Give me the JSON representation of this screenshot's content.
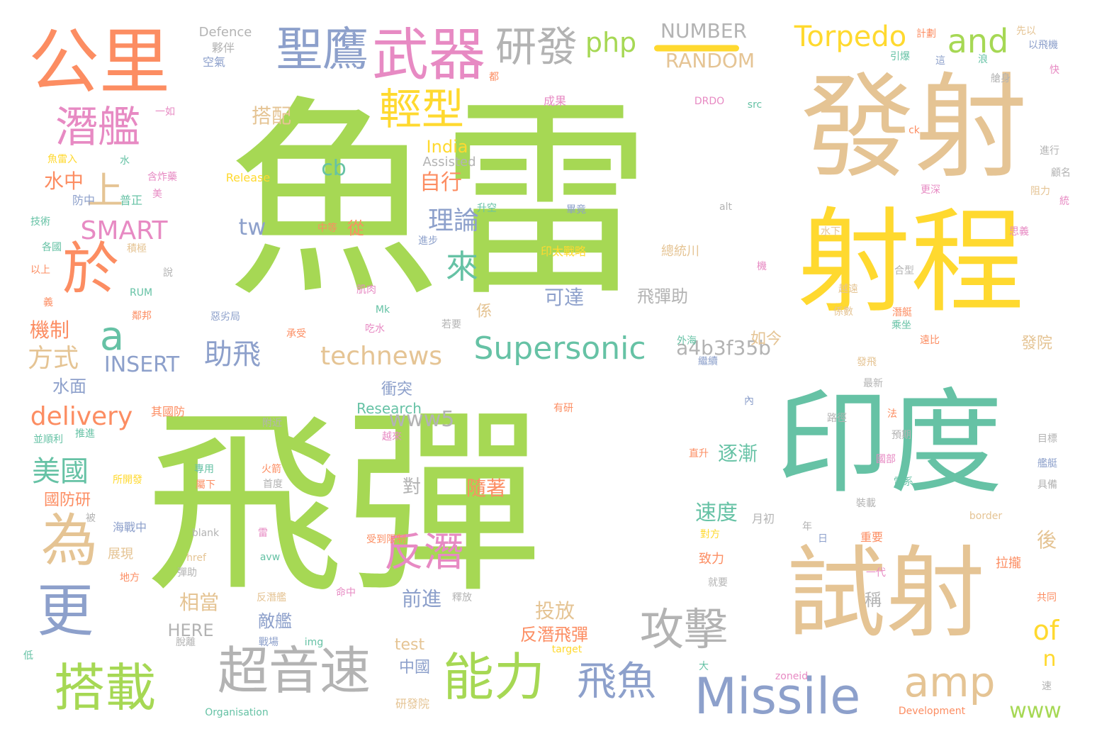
{
  "palette": {
    "green": "#a6d854",
    "teal": "#66c2a5",
    "orange": "#fc8d62",
    "blue": "#8da0cb",
    "pink": "#e78ac3",
    "yellow": "#ffd92f",
    "tan": "#e5c494",
    "gray": "#b3b3b3"
  },
  "words": [
    {
      "text": "魚雷",
      "color": "green",
      "size": 300
    },
    {
      "text": "飛彈",
      "color": "green",
      "size": 280
    },
    {
      "text": "發射",
      "color": "tan",
      "size": 160
    },
    {
      "text": "射程",
      "color": "yellow",
      "size": 160
    },
    {
      "text": "印度",
      "color": "teal",
      "size": 160
    },
    {
      "text": "試射",
      "color": "tan",
      "size": 140
    },
    {
      "text": "公里",
      "color": "orange",
      "size": 100
    },
    {
      "text": "武器",
      "color": "pink",
      "size": 80
    },
    {
      "text": "聖鷹",
      "color": "blue",
      "size": 65
    },
    {
      "text": "研發",
      "color": "gray",
      "size": 58
    },
    {
      "text": "php",
      "color": "green",
      "size": 38
    },
    {
      "text": "NUMBER",
      "color": "gray",
      "size": 28
    },
    {
      "text": "RANDOM",
      "color": "tan",
      "size": 28
    },
    {
      "text": "Torpedo",
      "color": "yellow",
      "size": 40
    },
    {
      "text": "and",
      "color": "green",
      "size": 46
    },
    {
      "text": "潛艦",
      "color": "pink",
      "size": 60
    },
    {
      "text": "輕型",
      "color": "yellow",
      "size": 60
    },
    {
      "text": "上",
      "color": "tan",
      "size": 52
    },
    {
      "text": "於",
      "color": "orange",
      "size": 80
    },
    {
      "text": "SMART",
      "color": "pink",
      "size": 36
    },
    {
      "text": "a",
      "color": "teal",
      "size": 56
    },
    {
      "text": "為",
      "color": "tan",
      "size": 80
    },
    {
      "text": "更",
      "color": "blue",
      "size": 80
    },
    {
      "text": "搭載",
      "color": "green",
      "size": 72
    },
    {
      "text": "超音速",
      "color": "gray",
      "size": 72
    },
    {
      "text": "能力",
      "color": "green",
      "size": 72
    },
    {
      "text": "飛魚",
      "color": "blue",
      "size": 56
    },
    {
      "text": "Missile",
      "color": "blue",
      "size": 70
    },
    {
      "text": "amp",
      "color": "tan",
      "size": 58
    },
    {
      "text": "攻擊",
      "color": "gray",
      "size": 62
    },
    {
      "text": "反潛",
      "color": "pink",
      "size": 56
    },
    {
      "text": "Supersonic",
      "color": "teal",
      "size": 44
    },
    {
      "text": "technews",
      "color": "tan",
      "size": 36
    },
    {
      "text": "INSERT",
      "color": "blue",
      "size": 30
    },
    {
      "text": "方式",
      "color": "tan",
      "size": 36
    },
    {
      "text": "delivery",
      "color": "orange",
      "size": 36
    },
    {
      "text": "美國",
      "color": "teal",
      "size": 40
    },
    {
      "text": "來",
      "color": "teal",
      "size": 46
    },
    {
      "text": "助飛",
      "color": "blue",
      "size": 40
    },
    {
      "text": "理論",
      "color": "blue",
      "size": 36
    },
    {
      "text": "自行",
      "color": "orange",
      "size": 30
    },
    {
      "text": "cb",
      "color": "teal",
      "size": 30
    },
    {
      "text": "tw",
      "color": "blue",
      "size": 32
    },
    {
      "text": "www5",
      "color": "gray",
      "size": 30
    },
    {
      "text": "a4b3f35b",
      "color": "gray",
      "size": 28
    },
    {
      "text": "India",
      "color": "yellow",
      "size": 24
    },
    {
      "text": "Assisted",
      "color": "gray",
      "size": 18
    },
    {
      "text": "搭配",
      "color": "tan",
      "size": 28
    },
    {
      "text": "水中",
      "color": "orange",
      "size": 28
    },
    {
      "text": "機制",
      "color": "orange",
      "size": 28
    },
    {
      "text": "水面",
      "color": "blue",
      "size": 24
    },
    {
      "text": "國防研",
      "color": "orange",
      "size": 22
    },
    {
      "text": "可達",
      "color": "blue",
      "size": 28
    },
    {
      "text": "飛彈助",
      "color": "gray",
      "size": 24
    },
    {
      "text": "如今",
      "color": "tan",
      "size": 22
    },
    {
      "text": "發院",
      "color": "tan",
      "size": 22
    },
    {
      "text": "衝突",
      "color": "blue",
      "size": 22
    },
    {
      "text": "Research",
      "color": "teal",
      "size": 20
    },
    {
      "text": "逐漸",
      "color": "teal",
      "size": 28
    },
    {
      "text": "隨著",
      "color": "orange",
      "size": 28
    },
    {
      "text": "速度",
      "color": "teal",
      "size": 30
    },
    {
      "text": "前進",
      "color": "blue",
      "size": 28
    },
    {
      "text": "相當",
      "color": "tan",
      "size": 28
    },
    {
      "text": "投放",
      "color": "tan",
      "size": 28
    },
    {
      "text": "敵艦",
      "color": "blue",
      "size": 24
    },
    {
      "text": "反潛飛彈",
      "color": "orange",
      "size": 24
    },
    {
      "text": "HERE",
      "color": "gray",
      "size": 24
    },
    {
      "text": "test",
      "color": "tan",
      "size": 22
    },
    {
      "text": "中國",
      "color": "blue",
      "size": 22
    },
    {
      "text": "研發院",
      "color": "tan",
      "size": 16
    },
    {
      "text": "of",
      "color": "yellow",
      "size": 38
    },
    {
      "text": "n",
      "color": "yellow",
      "size": 30
    },
    {
      "text": "www",
      "color": "green",
      "size": 30
    },
    {
      "text": "後",
      "color": "tan",
      "size": 28
    },
    {
      "text": "稱",
      "color": "gray",
      "size": 24
    },
    {
      "text": "Defence",
      "color": "gray",
      "size": 18
    },
    {
      "text": "夥伴",
      "color": "gray",
      "size": 16
    },
    {
      "text": "空氣",
      "color": "blue",
      "size": 16
    },
    {
      "text": "計劃",
      "color": "orange",
      "size": 14
    },
    {
      "text": "先以",
      "color": "tan",
      "size": 14
    },
    {
      "text": "以飛機",
      "color": "blue",
      "size": 14
    },
    {
      "text": "引爆",
      "color": "teal",
      "size": 14
    },
    {
      "text": "艙身",
      "color": "gray",
      "size": 14
    },
    {
      "text": "DRDO",
      "color": "pink",
      "size": 14
    },
    {
      "text": "src",
      "color": "teal",
      "size": 14
    },
    {
      "text": "ck",
      "color": "orange",
      "size": 14
    },
    {
      "text": "成果",
      "color": "pink",
      "size": 16
    },
    {
      "text": "一如",
      "color": "pink",
      "size": 14
    },
    {
      "text": "魚雷入",
      "color": "yellow",
      "size": 14
    },
    {
      "text": "Release",
      "color": "yellow",
      "size": 16
    },
    {
      "text": "含炸藥",
      "color": "pink",
      "size": 14
    },
    {
      "text": "普正",
      "color": "teal",
      "size": 16
    },
    {
      "text": "防中",
      "color": "blue",
      "size": 16
    },
    {
      "text": "技術",
      "color": "teal",
      "size": 14
    },
    {
      "text": "各國",
      "color": "teal",
      "size": 14
    },
    {
      "text": "以上",
      "color": "orange",
      "size": 14
    },
    {
      "text": "積極",
      "color": "tan",
      "size": 14
    },
    {
      "text": "RUM",
      "color": "teal",
      "size": 14
    },
    {
      "text": "中等",
      "color": "orange",
      "size": 14
    },
    {
      "text": "從",
      "color": "orange",
      "size": 24
    },
    {
      "text": "畢竟",
      "color": "blue",
      "size": 14
    },
    {
      "text": "印太戰略",
      "color": "yellow",
      "size": 16
    },
    {
      "text": "總統川",
      "color": "tan",
      "size": 18
    },
    {
      "text": "更深",
      "color": "pink",
      "size": 14
    },
    {
      "text": "阻力",
      "color": "tan",
      "size": 14
    },
    {
      "text": "思義",
      "color": "pink",
      "size": 14
    },
    {
      "text": "進行",
      "color": "gray",
      "size": 14
    },
    {
      "text": "顧名",
      "color": "gray",
      "size": 14
    },
    {
      "text": "水下",
      "color": "tan",
      "size": 14
    },
    {
      "text": "alt",
      "color": "gray",
      "size": 14
    },
    {
      "text": "肌肉",
      "color": "pink",
      "size": 14
    },
    {
      "text": "Mk",
      "color": "teal",
      "size": 14
    },
    {
      "text": "吃水",
      "color": "pink",
      "size": 14
    },
    {
      "text": "承受",
      "color": "orange",
      "size": 14
    },
    {
      "text": "係",
      "color": "tan",
      "size": 22
    },
    {
      "text": "潛艇",
      "color": "orange",
      "size": 14
    },
    {
      "text": "最新",
      "color": "gray",
      "size": 14
    },
    {
      "text": "發飛",
      "color": "tan",
      "size": 14
    },
    {
      "text": "路徑",
      "color": "gray",
      "size": 14
    },
    {
      "text": "有研",
      "color": "orange",
      "size": 14
    },
    {
      "text": "預期",
      "color": "gray",
      "size": 14
    },
    {
      "text": "目標",
      "color": "gray",
      "size": 14
    },
    {
      "text": "艦艇",
      "color": "blue",
      "size": 14
    },
    {
      "text": "具備",
      "color": "gray",
      "size": 14
    },
    {
      "text": "雷系",
      "color": "teal",
      "size": 14
    },
    {
      "text": "裝載",
      "color": "gray",
      "size": 14
    },
    {
      "text": "拉攏",
      "color": "orange",
      "size": 18
    },
    {
      "text": "重要",
      "color": "orange",
      "size": 16
    },
    {
      "text": "一代",
      "color": "pink",
      "size": 14
    },
    {
      "text": "共同",
      "color": "orange",
      "size": 14
    },
    {
      "text": "月初",
      "color": "gray",
      "size": 16
    },
    {
      "text": "對方",
      "color": "yellow",
      "size": 14
    },
    {
      "text": "致力",
      "color": "orange",
      "size": 18
    },
    {
      "text": "就要",
      "color": "gray",
      "size": 14
    },
    {
      "text": "其國防",
      "color": "orange",
      "size": 16
    },
    {
      "text": "推進",
      "color": "teal",
      "size": 14
    },
    {
      "text": "並順利",
      "color": "teal",
      "size": 14
    },
    {
      "text": "所開發",
      "color": "yellow",
      "size": 14
    },
    {
      "text": "專用",
      "color": "teal",
      "size": 14
    },
    {
      "text": "屬下",
      "color": "orange",
      "size": 14
    },
    {
      "text": "火箭",
      "color": "orange",
      "size": 14
    },
    {
      "text": "首度",
      "color": "gray",
      "size": 14
    },
    {
      "text": "海戰中",
      "color": "blue",
      "size": 16
    },
    {
      "text": "展現",
      "color": "tan",
      "size": 18
    },
    {
      "text": "地方",
      "color": "orange",
      "size": 14
    },
    {
      "text": "彈助",
      "color": "gray",
      "size": 14
    },
    {
      "text": "blank",
      "color": "gray",
      "size": 14
    },
    {
      "text": "href",
      "color": "tan",
      "size": 14
    },
    {
      "text": "avw",
      "color": "teal",
      "size": 14
    },
    {
      "text": "受到限制",
      "color": "orange",
      "size": 14
    },
    {
      "text": "反潛艦",
      "color": "tan",
      "size": 14
    },
    {
      "text": "命中",
      "color": "pink",
      "size": 14
    },
    {
      "text": "釋放",
      "color": "gray",
      "size": 14
    },
    {
      "text": "target",
      "color": "yellow",
      "size": 14
    },
    {
      "text": "戰場",
      "color": "blue",
      "size": 14
    },
    {
      "text": "img",
      "color": "teal",
      "size": 14
    },
    {
      "text": "脫離",
      "color": "gray",
      "size": 14
    },
    {
      "text": "Organisation",
      "color": "teal",
      "size": 14
    },
    {
      "text": "Development",
      "color": "orange",
      "size": 14
    },
    {
      "text": "zoneid",
      "color": "pink",
      "size": 14
    },
    {
      "text": "border",
      "color": "tan",
      "size": 14
    },
    {
      "text": "外海",
      "color": "teal",
      "size": 14
    },
    {
      "text": "繼續",
      "color": "blue",
      "size": 14
    },
    {
      "text": "若要",
      "color": "gray",
      "size": 14
    },
    {
      "text": "係數",
      "color": "tan",
      "size": 14
    },
    {
      "text": "惡劣局",
      "color": "blue",
      "size": 14
    },
    {
      "text": "鄰邦",
      "color": "orange",
      "size": 14
    },
    {
      "text": "遠比",
      "color": "orange",
      "size": 14
    },
    {
      "text": "乘坐",
      "color": "teal",
      "size": 14
    },
    {
      "text": "合型",
      "color": "gray",
      "size": 14
    },
    {
      "text": "越遠",
      "color": "tan",
      "size": 14
    },
    {
      "text": "年",
      "color": "gray",
      "size": 14
    },
    {
      "text": "日",
      "color": "blue",
      "size": 14
    },
    {
      "text": "雷",
      "color": "pink",
      "size": 14
    },
    {
      "text": "大",
      "color": "teal",
      "size": 14
    },
    {
      "text": "升空",
      "color": "teal",
      "size": 14
    },
    {
      "text": "附近",
      "color": "gray",
      "size": 14
    },
    {
      "text": "內",
      "color": "blue",
      "size": 14
    },
    {
      "text": "法",
      "color": "orange",
      "size": 14
    },
    {
      "text": "越來",
      "color": "pink",
      "size": 14
    },
    {
      "text": "進步",
      "color": "blue",
      "size": 14
    },
    {
      "text": "美",
      "color": "pink",
      "size": 14
    },
    {
      "text": "水",
      "color": "teal",
      "size": 14
    },
    {
      "text": "說",
      "color": "gray",
      "size": 14
    },
    {
      "text": "義",
      "color": "orange",
      "size": 14
    },
    {
      "text": "機",
      "color": "pink",
      "size": 14
    },
    {
      "text": "統",
      "color": "pink",
      "size": 14
    },
    {
      "text": "快",
      "color": "pink",
      "size": 14
    },
    {
      "text": "浪",
      "color": "teal",
      "size": 14
    },
    {
      "text": "這",
      "color": "blue",
      "size": 14
    },
    {
      "text": "都",
      "color": "orange",
      "size": 14
    },
    {
      "text": "直升",
      "color": "orange",
      "size": 14
    },
    {
      "text": "國部",
      "color": "pink",
      "size": 14
    },
    {
      "text": "被",
      "color": "gray",
      "size": 14
    },
    {
      "text": "低",
      "color": "teal",
      "size": 14
    },
    {
      "text": "對",
      "color": "gray",
      "size": 26
    },
    {
      "text": "速",
      "color": "gray",
      "size": 14
    }
  ]
}
